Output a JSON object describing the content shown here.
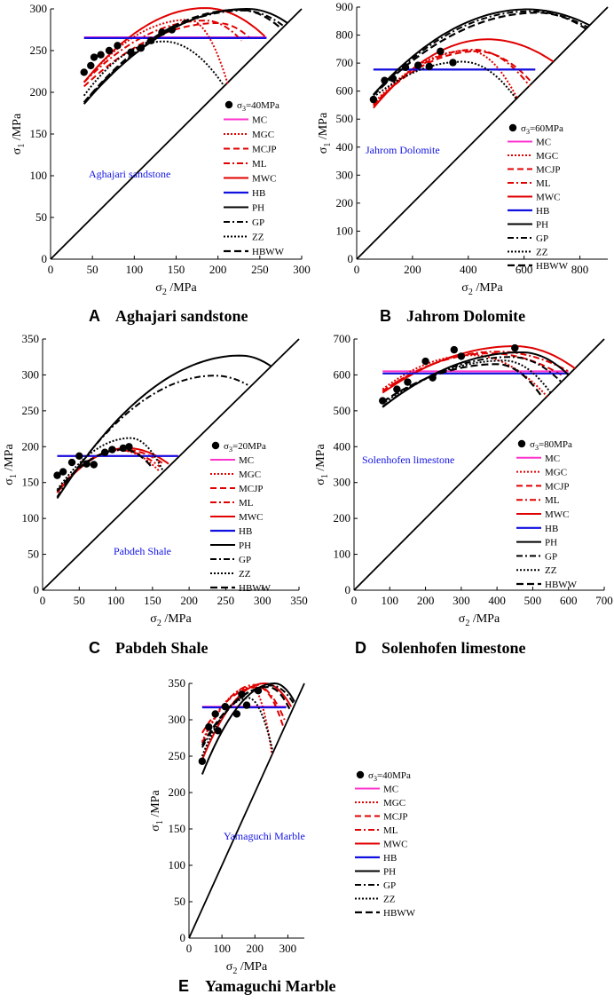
{
  "figure": {
    "legend_labels": [
      "MC",
      "MGC",
      "MCJP",
      "ML",
      "MWC",
      "HB",
      "PH",
      "GP",
      "ZZ",
      "HBWW"
    ],
    "colors": {
      "MC": "#ff33cc",
      "MGC": "#e00000",
      "MCJP": "#e00000",
      "ML": "#e00000",
      "MWC": "#e00000",
      "HB": "#1010e0",
      "PH": "#000000",
      "GP": "#000000",
      "ZZ": "#000000",
      "HBWW": "#000000",
      "points": "#000000",
      "annotation": "#1414e6"
    }
  },
  "chart_data": [
    {
      "id": "A",
      "type": "line",
      "caption_letter": "A",
      "caption_text": "Aghajari sandstone",
      "annotation": "Aghajari sandstone",
      "xlabel_main": "σ",
      "xlabel_sub": "2",
      "xlabel_unit": " /MPa",
      "ylabel_main": "σ",
      "ylabel_sub": "1",
      "ylabel_unit": " /MPa",
      "legend_title_main": "σ",
      "legend_title_sub": "3",
      "legend_title_value": "=40MPa",
      "xlim": [
        0,
        300
      ],
      "ylim": [
        0,
        300
      ],
      "xticks": [
        0,
        50,
        100,
        150,
        200,
        250,
        300
      ],
      "yticks": [
        0,
        50,
        100,
        150,
        200,
        250,
        300
      ],
      "xticklabels": [
        "0",
        "50",
        "100",
        "150",
        "200",
        "250",
        "300"
      ],
      "yticklabels": [
        "0",
        "50",
        "100",
        "150",
        "200",
        "250",
        "300"
      ],
      "sigma3": 40,
      "x_end": 300,
      "points": [
        [
          40,
          224
        ],
        [
          48,
          232
        ],
        [
          52,
          242
        ],
        [
          60,
          245
        ],
        [
          70,
          250
        ],
        [
          80,
          256
        ],
        [
          96,
          248
        ],
        [
          108,
          253
        ],
        [
          120,
          262
        ],
        [
          133,
          272
        ],
        [
          145,
          275
        ]
      ],
      "series": [
        {
          "name": "MC",
          "kind": "flat",
          "y": 266,
          "x_end": 258
        },
        {
          "name": "MGC",
          "kind": "arch",
          "y0": 212,
          "peak_x": 165,
          "peak_y": 287,
          "x_end": 212,
          "y_end": 209
        },
        {
          "name": "MCJP",
          "kind": "arch",
          "y0": 207,
          "peak_x": 200,
          "peak_y": 283,
          "x_end": 238,
          "y_end": 265
        },
        {
          "name": "ML",
          "kind": "arch",
          "y0": 212,
          "peak_x": 185,
          "peak_y": 286,
          "x_end": 228,
          "y_end": 262
        },
        {
          "name": "MWC",
          "kind": "arch",
          "y0": 212,
          "peak_x": 185,
          "peak_y": 301,
          "x_end": 256,
          "y_end": 267
        },
        {
          "name": "HB",
          "kind": "flat",
          "y": 265,
          "x_end": 258
        },
        {
          "name": "PH",
          "kind": "arch",
          "y0": 186,
          "peak_x": 235,
          "peak_y": 300,
          "x_end": 283,
          "y_end": 283
        },
        {
          "name": "GP",
          "kind": "arch",
          "y0": 188,
          "peak_x": 230,
          "peak_y": 298,
          "x_end": 279,
          "y_end": 279
        },
        {
          "name": "ZZ",
          "kind": "arch",
          "y0": 196,
          "peak_x": 135,
          "peak_y": 261,
          "x_end": 207,
          "y_end": 208
        },
        {
          "name": "HBWW",
          "kind": "arch",
          "y0": 188,
          "peak_x": 225,
          "peak_y": 299,
          "x_end": 276,
          "y_end": 276
        }
      ]
    },
    {
      "id": "B",
      "type": "line",
      "caption_letter": "B",
      "caption_text": "Jahrom Dolomite",
      "annotation": "Jahrom Dolomite",
      "xlabel_main": "σ",
      "xlabel_sub": "2",
      "xlabel_unit": " /MPa",
      "ylabel_main": "σ",
      "ylabel_sub": "1",
      "ylabel_unit": " /MPa",
      "legend_title_main": "σ",
      "legend_title_sub": "3",
      "legend_title_value": "=60MPa",
      "xlim": [
        0,
        900
      ],
      "ylim": [
        0,
        900
      ],
      "xticks": [
        0,
        200,
        400,
        600,
        800
      ],
      "yticks": [
        0,
        100,
        200,
        300,
        400,
        500,
        600,
        700,
        800,
        900
      ],
      "xticklabels": [
        "0",
        "200",
        "400",
        "600",
        "800"
      ],
      "yticklabels": [
        "0",
        "100",
        "200",
        "300",
        "400",
        "500",
        "600",
        "700",
        "800",
        "900"
      ],
      "sigma3": 60,
      "x_end": 900,
      "points": [
        [
          60,
          570
        ],
        [
          100,
          638
        ],
        [
          130,
          645
        ],
        [
          175,
          685
        ],
        [
          220,
          692
        ],
        [
          260,
          688
        ],
        [
          300,
          742
        ],
        [
          345,
          702
        ]
      ],
      "series": [
        {
          "name": "MC",
          "kind": "flat",
          "y": 677,
          "x_end": 640
        },
        {
          "name": "MGC",
          "kind": "arch",
          "y0": 555,
          "peak_x": 400,
          "peak_y": 745,
          "x_end": 575,
          "y_end": 575
        },
        {
          "name": "MCJP",
          "kind": "arch",
          "y0": 552,
          "peak_x": 430,
          "peak_y": 742,
          "x_end": 630,
          "y_end": 628
        },
        {
          "name": "ML",
          "kind": "arch",
          "y0": 548,
          "peak_x": 420,
          "peak_y": 748,
          "x_end": 620,
          "y_end": 618
        },
        {
          "name": "MWC",
          "kind": "arch",
          "y0": 540,
          "peak_x": 470,
          "peak_y": 785,
          "x_end": 705,
          "y_end": 705
        },
        {
          "name": "HB",
          "kind": "flat",
          "y": 677,
          "x_end": 640
        },
        {
          "name": "PH",
          "kind": "arch",
          "y0": 588,
          "peak_x": 610,
          "peak_y": 892,
          "x_end": 835,
          "y_end": 835
        },
        {
          "name": "GP",
          "kind": "arch",
          "y0": 585,
          "peak_x": 620,
          "peak_y": 885,
          "x_end": 828,
          "y_end": 828
        },
        {
          "name": "ZZ",
          "kind": "arch",
          "y0": 578,
          "peak_x": 380,
          "peak_y": 705,
          "x_end": 572,
          "y_end": 572
        },
        {
          "name": "HBWW",
          "kind": "arch",
          "y0": 585,
          "peak_x": 650,
          "peak_y": 880,
          "x_end": 822,
          "y_end": 822
        }
      ]
    },
    {
      "id": "C",
      "type": "line",
      "caption_letter": "C",
      "caption_text": "Pabdeh Shale",
      "annotation": "Pabdeh Shale",
      "xlabel_main": "σ",
      "xlabel_sub": "2",
      "xlabel_unit": " /MPa",
      "ylabel_main": "σ",
      "ylabel_sub": "1",
      "ylabel_unit": " /MPa",
      "legend_title_main": "σ",
      "legend_title_sub": "3",
      "legend_title_value": "=20MPa",
      "xlim": [
        0,
        350
      ],
      "ylim": [
        0,
        350
      ],
      "xticks": [
        0,
        50,
        100,
        150,
        200,
        250,
        300,
        350
      ],
      "yticks": [
        0,
        50,
        100,
        150,
        200,
        250,
        300,
        350
      ],
      "xticklabels": [
        "0",
        "50",
        "100",
        "150",
        "200",
        "250",
        "300",
        "350"
      ],
      "yticklabels": [
        "0",
        "50",
        "100",
        "150",
        "200",
        "250",
        "300",
        "350"
      ],
      "sigma3": 20,
      "x_end": 350,
      "points": [
        [
          20,
          160
        ],
        [
          28,
          165
        ],
        [
          40,
          178
        ],
        [
          50,
          187
        ],
        [
          60,
          176
        ],
        [
          70,
          175
        ],
        [
          85,
          192
        ],
        [
          95,
          196
        ],
        [
          110,
          198
        ],
        [
          118,
          200
        ]
      ],
      "series": [
        {
          "name": "MC",
          "kind": "flat",
          "y": 187,
          "x_end": 185
        },
        {
          "name": "MGC",
          "kind": "arch",
          "y0": 138,
          "peak_x": 105,
          "peak_y": 195,
          "x_end": 160,
          "y_end": 165
        },
        {
          "name": "MCJP",
          "kind": "arch",
          "y0": 136,
          "peak_x": 110,
          "peak_y": 196,
          "x_end": 165,
          "y_end": 176
        },
        {
          "name": "ML",
          "kind": "arch",
          "y0": 136,
          "peak_x": 105,
          "peak_y": 195,
          "x_end": 160,
          "y_end": 172
        },
        {
          "name": "MWC",
          "kind": "arch",
          "y0": 136,
          "peak_x": 115,
          "peak_y": 198,
          "x_end": 172,
          "y_end": 176
        },
        {
          "name": "HB",
          "kind": "flat",
          "y": 187,
          "x_end": 185
        },
        {
          "name": "PH",
          "kind": "arch",
          "y0": 128,
          "peak_x": 270,
          "peak_y": 327,
          "x_end": 312,
          "y_end": 312
        },
        {
          "name": "GP",
          "kind": "arch",
          "y0": 130,
          "peak_x": 235,
          "peak_y": 299,
          "x_end": 280,
          "y_end": 286
        },
        {
          "name": "ZZ",
          "kind": "arch",
          "y0": 140,
          "peak_x": 120,
          "peak_y": 212,
          "x_end": 165,
          "y_end": 165
        },
        {
          "name": "HBWW",
          "kind": "arch",
          "y0": 138,
          "peak_x": 110,
          "peak_y": 196,
          "x_end": 150,
          "y_end": 170
        }
      ]
    },
    {
      "id": "D",
      "type": "line",
      "caption_letter": "D",
      "caption_text": "Solenhofen limestone",
      "annotation": "Solenhofen limestone",
      "xlabel_main": "σ",
      "xlabel_sub": "2",
      "xlabel_unit": " /MPa",
      "ylabel_main": "σ",
      "ylabel_sub": "1",
      "ylabel_unit": " /MPa",
      "legend_title_main": "σ",
      "legend_title_sub": "3",
      "legend_title_value": "=80MPa",
      "xlim": [
        0,
        700
      ],
      "ylim": [
        0,
        700
      ],
      "xticks": [
        0,
        100,
        200,
        300,
        400,
        500,
        600,
        700
      ],
      "yticks": [
        0,
        100,
        200,
        300,
        400,
        500,
        600,
        700
      ],
      "xticklabels": [
        "0",
        "100",
        "200",
        "300",
        "400",
        "500",
        "600",
        "700"
      ],
      "yticklabels": [
        "0",
        "100",
        "200",
        "300",
        "400",
        "500",
        "600",
        "700"
      ],
      "sigma3": 80,
      "x_end": 700,
      "points": [
        [
          80,
          528
        ],
        [
          120,
          560
        ],
        [
          150,
          580
        ],
        [
          200,
          638
        ],
        [
          220,
          592
        ],
        [
          280,
          670
        ],
        [
          300,
          652
        ],
        [
          450,
          675
        ]
      ],
      "series": [
        {
          "name": "MC",
          "kind": "flat",
          "y": 610,
          "x_end": 600
        },
        {
          "name": "MGC",
          "kind": "arch",
          "y0": 560,
          "peak_x": 330,
          "peak_y": 655,
          "x_end": 540,
          "y_end": 540
        },
        {
          "name": "MCJP",
          "kind": "arch",
          "y0": 555,
          "peak_x": 380,
          "peak_y": 660,
          "x_end": 580,
          "y_end": 600
        },
        {
          "name": "ML",
          "kind": "arch",
          "y0": 555,
          "peak_x": 400,
          "peak_y": 665,
          "x_end": 600,
          "y_end": 610
        },
        {
          "name": "MWC",
          "kind": "arch",
          "y0": 550,
          "peak_x": 450,
          "peak_y": 680,
          "x_end": 618,
          "y_end": 618
        },
        {
          "name": "HB",
          "kind": "flat",
          "y": 604,
          "x_end": 600
        },
        {
          "name": "PH",
          "kind": "arch",
          "y0": 510,
          "peak_x": 470,
          "peak_y": 663,
          "x_end": 600,
          "y_end": 600
        },
        {
          "name": "GP",
          "kind": "arch",
          "y0": 512,
          "peak_x": 440,
          "peak_y": 650,
          "x_end": 580,
          "y_end": 580
        },
        {
          "name": "ZZ",
          "kind": "arch",
          "y0": 520,
          "peak_x": 420,
          "peak_y": 640,
          "x_end": 550,
          "y_end": 550
        },
        {
          "name": "HBWW",
          "kind": "arch",
          "y0": 525,
          "peak_x": 400,
          "peak_y": 630,
          "x_end": 525,
          "y_end": 540
        }
      ]
    },
    {
      "id": "E",
      "type": "line",
      "caption_letter": "E",
      "caption_text": "Yamaguchi Marble",
      "annotation": "Yamaguchi Marble",
      "xlabel_main": "σ",
      "xlabel_sub": "2",
      "xlabel_unit": " /MPa",
      "ylabel_main": "σ",
      "ylabel_sub": "1",
      "ylabel_unit": " /MPa",
      "legend_title_main": "σ",
      "legend_title_sub": "3",
      "legend_title_value": "=40MPa",
      "xlim": [
        0,
        350
      ],
      "ylim": [
        0,
        350
      ],
      "xticks": [
        0,
        100,
        200,
        300
      ],
      "yticks": [
        0,
        50,
        100,
        150,
        200,
        250,
        300,
        350
      ],
      "xticklabels": [
        "0",
        "100",
        "200",
        "300"
      ],
      "yticklabels": [
        "0",
        "50",
        "100",
        "150",
        "200",
        "250",
        "300",
        "350"
      ],
      "sigma3": 40,
      "x_end": 350,
      "points": [
        [
          40,
          243
        ],
        [
          60,
          290
        ],
        [
          80,
          308
        ],
        [
          88,
          285
        ],
        [
          110,
          318
        ],
        [
          145,
          308
        ],
        [
          160,
          335
        ],
        [
          175,
          320
        ],
        [
          210,
          340
        ]
      ],
      "series": [
        {
          "name": "MC",
          "kind": "flat",
          "y": 318,
          "x_end": 295
        },
        {
          "name": "MGC",
          "kind": "arch",
          "y0": 270,
          "peak_x": 190,
          "peak_y": 345,
          "x_end": 252,
          "y_end": 252
        },
        {
          "name": "MCJP",
          "kind": "arch",
          "y0": 282,
          "peak_x": 210,
          "peak_y": 345,
          "x_end": 285,
          "y_end": 292
        },
        {
          "name": "ML",
          "kind": "arch",
          "y0": 268,
          "peak_x": 200,
          "peak_y": 348,
          "x_end": 290,
          "y_end": 300
        },
        {
          "name": "MWC",
          "kind": "arch",
          "y0": 245,
          "peak_x": 230,
          "peak_y": 350,
          "x_end": 310,
          "y_end": 318
        },
        {
          "name": "HB",
          "kind": "flat",
          "y": 317,
          "x_end": 295
        },
        {
          "name": "PH",
          "kind": "arch",
          "y0": 225,
          "peak_x": 260,
          "peak_y": 350,
          "x_end": 320,
          "y_end": 325
        },
        {
          "name": "GP",
          "kind": "arch",
          "y0": 262,
          "peak_x": 250,
          "peak_y": 347,
          "x_end": 318,
          "y_end": 322
        },
        {
          "name": "ZZ",
          "kind": "arch",
          "y0": 250,
          "peak_x": 180,
          "peak_y": 330,
          "x_end": 255,
          "y_end": 255
        },
        {
          "name": "HBWW",
          "kind": "arch",
          "y0": 265,
          "peak_x": 240,
          "peak_y": 345,
          "x_end": 305,
          "y_end": 315
        }
      ]
    }
  ]
}
